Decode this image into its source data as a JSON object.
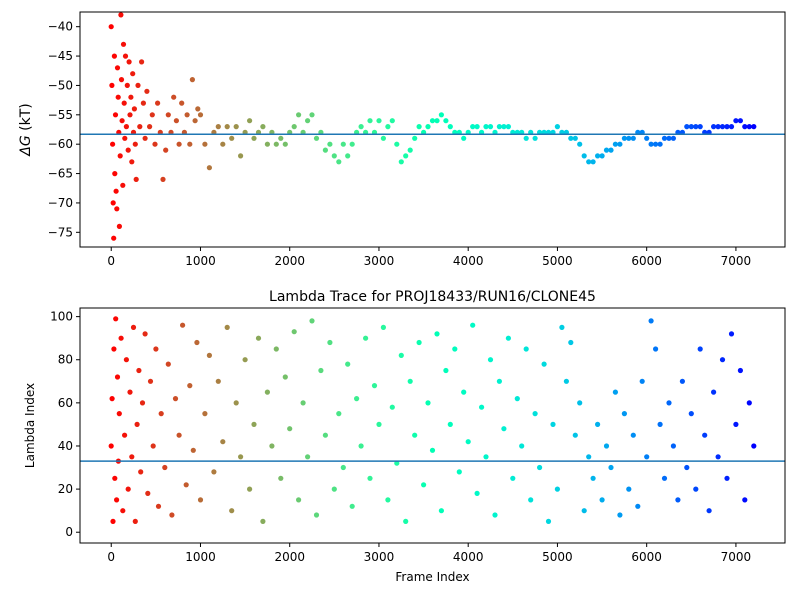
{
  "chart_data": [
    {
      "type": "scatter",
      "title": "",
      "xlabel": "",
      "ylabel_symbol": "ΔG",
      "ylabel_unit": " (kT)",
      "xlim": [
        -350,
        7550
      ],
      "ylim": [
        -77.5,
        -37.5
      ],
      "xticks": [
        0,
        1000,
        2000,
        3000,
        4000,
        5000,
        6000,
        7000
      ],
      "yticks": [
        -75,
        -70,
        -65,
        -60,
        -55,
        -50,
        -45,
        -40
      ],
      "hline": -58.3,
      "colormap": "rainbow",
      "x_max": 7200,
      "points": [
        [
          0,
          -40
        ],
        [
          8,
          -50
        ],
        [
          15,
          -60
        ],
        [
          22,
          -70
        ],
        [
          28,
          -76
        ],
        [
          35,
          -45
        ],
        [
          40,
          -65
        ],
        [
          48,
          -55
        ],
        [
          55,
          -68
        ],
        [
          62,
          -71
        ],
        [
          70,
          -47
        ],
        [
          78,
          -52
        ],
        [
          85,
          -58
        ],
        [
          92,
          -74
        ],
        [
          100,
          -62
        ],
        [
          108,
          -38
        ],
        [
          115,
          -49
        ],
        [
          122,
          -56
        ],
        [
          130,
          -67
        ],
        [
          138,
          -43
        ],
        [
          145,
          -53
        ],
        [
          152,
          -59
        ],
        [
          160,
          -45
        ],
        [
          170,
          -57
        ],
        [
          180,
          -50
        ],
        [
          190,
          -61
        ],
        [
          200,
          -46
        ],
        [
          210,
          -55
        ],
        [
          220,
          -52
        ],
        [
          230,
          -63
        ],
        [
          240,
          -48
        ],
        [
          250,
          -58
        ],
        [
          260,
          -54
        ],
        [
          270,
          -60
        ],
        [
          280,
          -66
        ],
        [
          300,
          -50
        ],
        [
          320,
          -57
        ],
        [
          340,
          -46
        ],
        [
          360,
          -53
        ],
        [
          380,
          -59
        ],
        [
          400,
          -51
        ],
        [
          430,
          -57
        ],
        [
          460,
          -55
        ],
        [
          490,
          -60
        ],
        [
          520,
          -53
        ],
        [
          550,
          -58
        ],
        [
          580,
          -66
        ],
        [
          610,
          -61
        ],
        [
          640,
          -55
        ],
        [
          670,
          -58
        ],
        [
          700,
          -52
        ],
        [
          730,
          -56
        ],
        [
          760,
          -60
        ],
        [
          790,
          -53
        ],
        [
          820,
          -58
        ],
        [
          850,
          -55
        ],
        [
          880,
          -60
        ],
        [
          910,
          -49
        ],
        [
          940,
          -56
        ],
        [
          970,
          -54
        ],
        [
          1000,
          -55
        ],
        [
          1050,
          -60
        ],
        [
          1100,
          -64
        ],
        [
          1150,
          -58
        ],
        [
          1200,
          -57
        ],
        [
          1250,
          -60
        ],
        [
          1300,
          -57
        ],
        [
          1350,
          -59
        ],
        [
          1400,
          -57
        ],
        [
          1450,
          -62
        ],
        [
          1500,
          -58
        ],
        [
          1550,
          -56
        ],
        [
          1600,
          -59
        ],
        [
          1650,
          -58
        ],
        [
          1700,
          -57
        ],
        [
          1750,
          -60
        ],
        [
          1800,
          -58
        ],
        [
          1850,
          -60
        ],
        [
          1900,
          -59
        ],
        [
          1950,
          -60
        ],
        [
          2000,
          -58
        ],
        [
          2050,
          -57
        ],
        [
          2100,
          -55
        ],
        [
          2150,
          -58
        ],
        [
          2200,
          -56
        ],
        [
          2250,
          -55
        ],
        [
          2300,
          -59
        ],
        [
          2350,
          -58
        ],
        [
          2400,
          -61
        ],
        [
          2450,
          -60
        ],
        [
          2500,
          -62
        ],
        [
          2550,
          -63
        ],
        [
          2600,
          -60
        ],
        [
          2650,
          -62
        ],
        [
          2700,
          -60
        ],
        [
          2750,
          -58
        ],
        [
          2800,
          -57
        ],
        [
          2850,
          -58
        ],
        [
          2900,
          -56
        ],
        [
          2950,
          -58
        ],
        [
          3000,
          -56
        ],
        [
          3050,
          -59
        ],
        [
          3100,
          -57
        ],
        [
          3150,
          -56
        ],
        [
          3200,
          -60
        ],
        [
          3250,
          -63
        ],
        [
          3300,
          -62
        ],
        [
          3350,
          -61
        ],
        [
          3400,
          -59
        ],
        [
          3450,
          -57
        ],
        [
          3500,
          -58
        ],
        [
          3550,
          -57
        ],
        [
          3600,
          -56
        ],
        [
          3650,
          -56
        ],
        [
          3700,
          -55
        ],
        [
          3750,
          -56
        ],
        [
          3800,
          -57
        ],
        [
          3850,
          -58
        ],
        [
          3900,
          -58
        ],
        [
          3950,
          -59
        ],
        [
          4000,
          -58
        ],
        [
          4050,
          -57
        ],
        [
          4100,
          -57
        ],
        [
          4150,
          -58
        ],
        [
          4200,
          -57
        ],
        [
          4250,
          -57
        ],
        [
          4300,
          -58
        ],
        [
          4350,
          -57
        ],
        [
          4400,
          -57
        ],
        [
          4450,
          -57
        ],
        [
          4500,
          -58
        ],
        [
          4550,
          -58
        ],
        [
          4600,
          -58
        ],
        [
          4650,
          -59
        ],
        [
          4700,
          -58
        ],
        [
          4750,
          -59
        ],
        [
          4800,
          -58
        ],
        [
          4850,
          -58
        ],
        [
          4900,
          -58
        ],
        [
          4950,
          -58
        ],
        [
          5000,
          -57
        ],
        [
          5050,
          -58
        ],
        [
          5100,
          -58
        ],
        [
          5150,
          -59
        ],
        [
          5200,
          -59
        ],
        [
          5250,
          -60
        ],
        [
          5300,
          -62
        ],
        [
          5350,
          -63
        ],
        [
          5400,
          -63
        ],
        [
          5450,
          -62
        ],
        [
          5500,
          -62
        ],
        [
          5550,
          -61
        ],
        [
          5600,
          -61
        ],
        [
          5650,
          -60
        ],
        [
          5700,
          -60
        ],
        [
          5750,
          -59
        ],
        [
          5800,
          -59
        ],
        [
          5850,
          -59
        ],
        [
          5900,
          -58
        ],
        [
          5950,
          -58
        ],
        [
          6000,
          -59
        ],
        [
          6050,
          -60
        ],
        [
          6100,
          -60
        ],
        [
          6150,
          -60
        ],
        [
          6200,
          -59
        ],
        [
          6250,
          -59
        ],
        [
          6300,
          -59
        ],
        [
          6350,
          -58
        ],
        [
          6400,
          -58
        ],
        [
          6450,
          -57
        ],
        [
          6500,
          -57
        ],
        [
          6550,
          -57
        ],
        [
          6600,
          -57
        ],
        [
          6650,
          -58
        ],
        [
          6700,
          -58
        ],
        [
          6750,
          -57
        ],
        [
          6800,
          -57
        ],
        [
          6850,
          -57
        ],
        [
          6900,
          -57
        ],
        [
          6950,
          -57
        ],
        [
          7000,
          -56
        ],
        [
          7050,
          -56
        ],
        [
          7100,
          -57
        ],
        [
          7150,
          -57
        ],
        [
          7200,
          -57
        ]
      ]
    },
    {
      "type": "scatter",
      "title": "Lambda Trace for PROJ18433/RUN16/CLONE45",
      "xlabel": "Frame Index",
      "ylabel": "Lambda Index",
      "xlim": [
        -350,
        7550
      ],
      "ylim": [
        -5,
        104
      ],
      "xticks": [
        0,
        1000,
        2000,
        3000,
        4000,
        5000,
        6000,
        7000
      ],
      "yticks": [
        0,
        20,
        40,
        60,
        80,
        100
      ],
      "hline": 33,
      "colormap": "rainbow",
      "x_max": 7200,
      "points": [
        [
          0,
          40
        ],
        [
          10,
          62
        ],
        [
          20,
          5
        ],
        [
          30,
          85
        ],
        [
          40,
          25
        ],
        [
          50,
          99
        ],
        [
          60,
          15
        ],
        [
          70,
          72
        ],
        [
          80,
          33
        ],
        [
          90,
          55
        ],
        [
          110,
          90
        ],
        [
          130,
          10
        ],
        [
          150,
          45
        ],
        [
          170,
          80
        ],
        [
          190,
          20
        ],
        [
          210,
          65
        ],
        [
          230,
          35
        ],
        [
          250,
          95
        ],
        [
          270,
          5
        ],
        [
          290,
          50
        ],
        [
          310,
          75
        ],
        [
          330,
          28
        ],
        [
          350,
          60
        ],
        [
          380,
          92
        ],
        [
          410,
          18
        ],
        [
          440,
          70
        ],
        [
          470,
          40
        ],
        [
          500,
          85
        ],
        [
          530,
          12
        ],
        [
          560,
          55
        ],
        [
          600,
          30
        ],
        [
          640,
          78
        ],
        [
          680,
          8
        ],
        [
          720,
          62
        ],
        [
          760,
          45
        ],
        [
          800,
          96
        ],
        [
          840,
          22
        ],
        [
          880,
          68
        ],
        [
          920,
          38
        ],
        [
          960,
          88
        ],
        [
          1000,
          15
        ],
        [
          1050,
          55
        ],
        [
          1100,
          82
        ],
        [
          1150,
          28
        ],
        [
          1200,
          70
        ],
        [
          1250,
          42
        ],
        [
          1300,
          95
        ],
        [
          1350,
          10
        ],
        [
          1400,
          60
        ],
        [
          1450,
          35
        ],
        [
          1500,
          80
        ],
        [
          1550,
          20
        ],
        [
          1600,
          50
        ],
        [
          1650,
          90
        ],
        [
          1700,
          5
        ],
        [
          1750,
          65
        ],
        [
          1800,
          40
        ],
        [
          1850,
          85
        ],
        [
          1900,
          25
        ],
        [
          1950,
          72
        ],
        [
          2000,
          48
        ],
        [
          2050,
          93
        ],
        [
          2100,
          15
        ],
        [
          2150,
          60
        ],
        [
          2200,
          35
        ],
        [
          2250,
          98
        ],
        [
          2300,
          8
        ],
        [
          2350,
          75
        ],
        [
          2400,
          45
        ],
        [
          2450,
          88
        ],
        [
          2500,
          20
        ],
        [
          2550,
          55
        ],
        [
          2600,
          30
        ],
        [
          2650,
          78
        ],
        [
          2700,
          12
        ],
        [
          2750,
          62
        ],
        [
          2800,
          40
        ],
        [
          2850,
          90
        ],
        [
          2900,
          25
        ],
        [
          2950,
          68
        ],
        [
          3000,
          50
        ],
        [
          3050,
          95
        ],
        [
          3100,
          15
        ],
        [
          3150,
          58
        ],
        [
          3200,
          32
        ],
        [
          3250,
          82
        ],
        [
          3300,
          5
        ],
        [
          3350,
          70
        ],
        [
          3400,
          45
        ],
        [
          3450,
          88
        ],
        [
          3500,
          22
        ],
        [
          3550,
          60
        ],
        [
          3600,
          38
        ],
        [
          3650,
          92
        ],
        [
          3700,
          10
        ],
        [
          3750,
          75
        ],
        [
          3800,
          50
        ],
        [
          3850,
          85
        ],
        [
          3900,
          28
        ],
        [
          3950,
          65
        ],
        [
          4000,
          42
        ],
        [
          4050,
          96
        ],
        [
          4100,
          18
        ],
        [
          4150,
          58
        ],
        [
          4200,
          35
        ],
        [
          4250,
          80
        ],
        [
          4300,
          8
        ],
        [
          4350,
          70
        ],
        [
          4400,
          48
        ],
        [
          4450,
          90
        ],
        [
          4500,
          25
        ],
        [
          4550,
          62
        ],
        [
          4600,
          40
        ],
        [
          4650,
          85
        ],
        [
          4700,
          15
        ],
        [
          4750,
          55
        ],
        [
          4800,
          30
        ],
        [
          4850,
          78
        ],
        [
          4900,
          5
        ],
        [
          4950,
          50
        ],
        [
          5000,
          20
        ],
        [
          5050,
          95
        ],
        [
          5100,
          70
        ],
        [
          5150,
          88
        ],
        [
          5200,
          45
        ],
        [
          5250,
          60
        ],
        [
          5300,
          10
        ],
        [
          5350,
          35
        ],
        [
          5400,
          25
        ],
        [
          5450,
          50
        ],
        [
          5500,
          15
        ],
        [
          5550,
          40
        ],
        [
          5600,
          30
        ],
        [
          5650,
          65
        ],
        [
          5700,
          8
        ],
        [
          5750,
          55
        ],
        [
          5800,
          20
        ],
        [
          5850,
          45
        ],
        [
          5900,
          12
        ],
        [
          5950,
          70
        ],
        [
          6000,
          35
        ],
        [
          6050,
          98
        ],
        [
          6100,
          85
        ],
        [
          6150,
          50
        ],
        [
          6200,
          25
        ],
        [
          6250,
          60
        ],
        [
          6300,
          40
        ],
        [
          6350,
          15
        ],
        [
          6400,
          70
        ],
        [
          6450,
          30
        ],
        [
          6500,
          55
        ],
        [
          6550,
          20
        ],
        [
          6600,
          85
        ],
        [
          6650,
          45
        ],
        [
          6700,
          10
        ],
        [
          6750,
          65
        ],
        [
          6800,
          35
        ],
        [
          6850,
          80
        ],
        [
          6900,
          25
        ],
        [
          6950,
          92
        ],
        [
          7000,
          50
        ],
        [
          7050,
          75
        ],
        [
          7100,
          15
        ],
        [
          7150,
          60
        ],
        [
          7200,
          40
        ]
      ]
    }
  ]
}
